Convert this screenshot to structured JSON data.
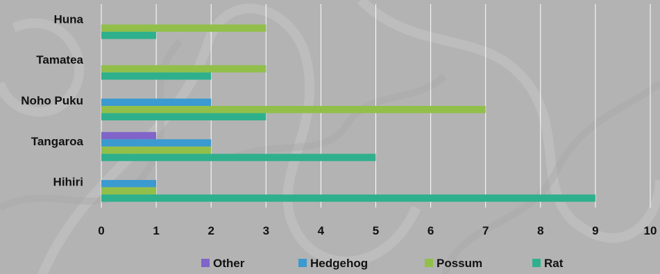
{
  "chart_data": {
    "type": "bar",
    "orientation": "horizontal",
    "categories": [
      "Huna",
      "Tamatea",
      "Noho Puku",
      "Tangaroa",
      "Hihiri"
    ],
    "series": [
      {
        "name": "Other",
        "color": "#8064c8",
        "values": [
          0,
          0,
          0,
          1,
          0
        ]
      },
      {
        "name": "Hedgehog",
        "color": "#3b9ad0",
        "values": [
          0,
          0,
          2,
          2,
          1
        ]
      },
      {
        "name": "Possum",
        "color": "#92bf4a",
        "values": [
          3,
          3,
          7,
          2,
          1
        ]
      },
      {
        "name": "Rat",
        "color": "#2fb08c",
        "values": [
          1,
          2,
          3,
          5,
          9
        ]
      }
    ],
    "xlim": [
      0,
      10
    ],
    "x_ticks": [
      "0",
      "1",
      "2",
      "3",
      "4",
      "5",
      "6",
      "7",
      "8",
      "9",
      "10"
    ],
    "grid": "vertical",
    "legend": "bottom"
  }
}
